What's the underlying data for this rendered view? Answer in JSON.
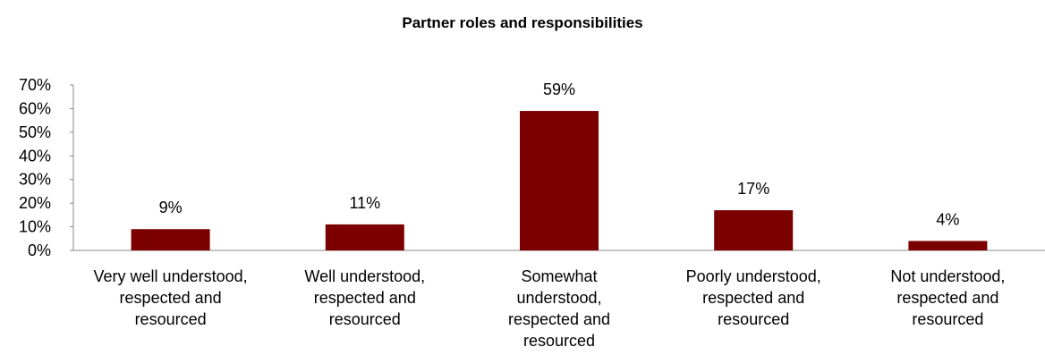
{
  "chart_data": {
    "type": "bar",
    "title": "Partner roles and responsibilities",
    "xlabel": "",
    "ylabel": "",
    "categories": [
      [
        "Very well understood,",
        "respected and",
        "resourced"
      ],
      [
        "Well understood,",
        "respected and",
        "resourced"
      ],
      [
        "Somewhat",
        "understood,",
        "respected and",
        "resourced"
      ],
      [
        "Poorly understood,",
        "respected and",
        "resourced"
      ],
      [
        "Not understood,",
        "respected and",
        "resourced"
      ]
    ],
    "values": [
      9,
      11,
      59,
      17,
      4
    ],
    "data_labels": [
      "9%",
      "11%",
      "59%",
      "17%",
      "4%"
    ],
    "ylim": [
      0,
      70
    ],
    "yticks": [
      0,
      10,
      20,
      30,
      40,
      50,
      60,
      70
    ],
    "ytick_labels": [
      "0%",
      "10%",
      "20%",
      "30%",
      "40%",
      "50%",
      "60%",
      "70%"
    ],
    "grid": false,
    "legend": "none",
    "bar_color": "#7B0000"
  }
}
